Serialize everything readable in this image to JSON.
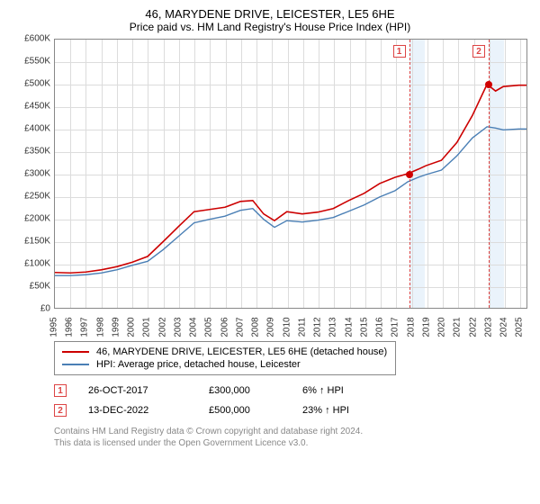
{
  "title": "46, MARYDENE DRIVE, LEICESTER, LE5 6HE",
  "subtitle": "Price paid vs. HM Land Registry's House Price Index (HPI)",
  "chart": {
    "type": "line",
    "background_color": "#ffffff",
    "grid_color": "#dcdcdc",
    "border_color": "#888888",
    "y": {
      "min": 0,
      "max": 600000,
      "tick_step": 50000,
      "labels": [
        "£0",
        "£50K",
        "£100K",
        "£150K",
        "£200K",
        "£250K",
        "£300K",
        "£350K",
        "£400K",
        "£450K",
        "£500K",
        "£550K",
        "£600K"
      ],
      "label_fontsize": 10,
      "label_color": "#333333"
    },
    "x": {
      "min": 1995,
      "max": 2025.5,
      "tick_step": 1,
      "labels": [
        "1995",
        "1996",
        "1997",
        "1998",
        "1999",
        "2000",
        "2001",
        "2002",
        "2003",
        "2004",
        "2005",
        "2006",
        "2007",
        "2008",
        "2009",
        "2010",
        "2011",
        "2012",
        "2013",
        "2014",
        "2015",
        "2016",
        "2017",
        "2018",
        "2019",
        "2020",
        "2021",
        "2022",
        "2023",
        "2024",
        "2025"
      ],
      "label_fontsize": 10,
      "label_color": "#333333"
    },
    "shaded_bands": [
      {
        "from": 2017.82,
        "to": 2018.82,
        "color": "#eaf3fb"
      },
      {
        "from": 2022.95,
        "to": 2023.95,
        "color": "#eaf3fb"
      }
    ],
    "event_lines": [
      {
        "x": 2017.82,
        "color": "#d44",
        "dash": true
      },
      {
        "x": 2022.95,
        "color": "#d44",
        "dash": true
      }
    ],
    "event_box_labels": [
      {
        "x": 2017.82,
        "label": "1"
      },
      {
        "x": 2022.95,
        "label": "2"
      }
    ],
    "series": [
      {
        "name": "price_paid",
        "label": "46, MARYDENE DRIVE, LEICESTER, LE5 6HE (detached house)",
        "color": "#cc0000",
        "line_width": 1.6,
        "points": [
          [
            1995.0,
            79000
          ],
          [
            1996.0,
            78000
          ],
          [
            1997.0,
            80000
          ],
          [
            1998.0,
            85000
          ],
          [
            1999.0,
            92000
          ],
          [
            2000.0,
            102000
          ],
          [
            2001.0,
            115000
          ],
          [
            2002.0,
            148000
          ],
          [
            2003.0,
            182000
          ],
          [
            2004.0,
            215000
          ],
          [
            2005.0,
            220000
          ],
          [
            2006.0,
            225000
          ],
          [
            2007.0,
            238000
          ],
          [
            2007.8,
            240000
          ],
          [
            2008.5,
            210000
          ],
          [
            2009.2,
            195000
          ],
          [
            2010.0,
            215000
          ],
          [
            2011.0,
            210000
          ],
          [
            2012.0,
            214000
          ],
          [
            2013.0,
            222000
          ],
          [
            2014.0,
            240000
          ],
          [
            2015.0,
            256000
          ],
          [
            2016.0,
            278000
          ],
          [
            2017.0,
            292000
          ],
          [
            2017.82,
            300000
          ],
          [
            2018.5,
            310000
          ],
          [
            2019.0,
            318000
          ],
          [
            2020.0,
            330000
          ],
          [
            2021.0,
            370000
          ],
          [
            2022.0,
            430000
          ],
          [
            2022.95,
            500000
          ],
          [
            2023.5,
            485000
          ],
          [
            2024.0,
            495000
          ],
          [
            2025.0,
            498000
          ],
          [
            2025.5,
            498000
          ]
        ]
      },
      {
        "name": "hpi",
        "label": "HPI: Average price, detached house, Leicester",
        "color": "#4a7fb5",
        "line_width": 1.4,
        "points": [
          [
            1995.0,
            72000
          ],
          [
            1996.0,
            72000
          ],
          [
            1997.0,
            74000
          ],
          [
            1998.0,
            78000
          ],
          [
            1999.0,
            85000
          ],
          [
            2000.0,
            95000
          ],
          [
            2001.0,
            104000
          ],
          [
            2002.0,
            130000
          ],
          [
            2003.0,
            160000
          ],
          [
            2004.0,
            190000
          ],
          [
            2005.0,
            198000
          ],
          [
            2006.0,
            205000
          ],
          [
            2007.0,
            218000
          ],
          [
            2007.8,
            222000
          ],
          [
            2008.5,
            198000
          ],
          [
            2009.2,
            180000
          ],
          [
            2010.0,
            195000
          ],
          [
            2011.0,
            192000
          ],
          [
            2012.0,
            196000
          ],
          [
            2013.0,
            202000
          ],
          [
            2014.0,
            216000
          ],
          [
            2015.0,
            230000
          ],
          [
            2016.0,
            248000
          ],
          [
            2017.0,
            262000
          ],
          [
            2017.82,
            282000
          ],
          [
            2018.5,
            292000
          ],
          [
            2019.0,
            298000
          ],
          [
            2020.0,
            308000
          ],
          [
            2021.0,
            340000
          ],
          [
            2022.0,
            380000
          ],
          [
            2022.95,
            405000
          ],
          [
            2023.5,
            402000
          ],
          [
            2024.0,
            398000
          ],
          [
            2025.0,
            400000
          ],
          [
            2025.5,
            400000
          ]
        ]
      }
    ],
    "sale_markers": [
      {
        "x": 2017.82,
        "y": 300000,
        "color": "#d00000",
        "size": 8
      },
      {
        "x": 2022.95,
        "y": 500000,
        "color": "#d00000",
        "size": 8
      }
    ]
  },
  "legend": {
    "items": [
      {
        "color": "#cc0000",
        "label": "46, MARYDENE DRIVE, LEICESTER, LE5 6HE (detached house)"
      },
      {
        "color": "#4a7fb5",
        "label": "HPI: Average price, detached house, Leicester"
      }
    ],
    "border_color": "#888888",
    "fontsize": 11
  },
  "events": [
    {
      "n": "1",
      "date": "26-OCT-2017",
      "price": "£300,000",
      "delta": "6% ↑ HPI"
    },
    {
      "n": "2",
      "date": "13-DEC-2022",
      "price": "£500,000",
      "delta": "23% ↑ HPI"
    }
  ],
  "license": {
    "line1": "Contains HM Land Registry data © Crown copyright and database right 2024.",
    "line2": "This data is licensed under the Open Government Licence v3.0."
  }
}
